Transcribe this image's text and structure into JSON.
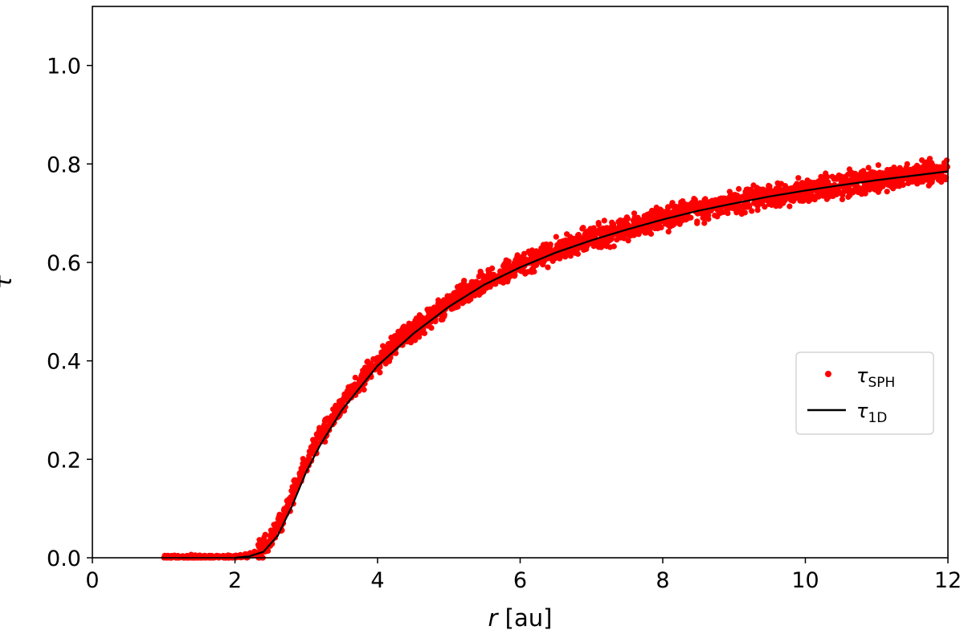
{
  "chart_data": {
    "type": "scatter",
    "title": "",
    "xlabel_var": "r",
    "xlabel_unit": " [au]",
    "ylabel": "τ",
    "xlim": [
      0,
      12
    ],
    "ylim": [
      0,
      1.12
    ],
    "x_ticks": [
      0,
      2,
      4,
      6,
      8,
      10,
      12
    ],
    "x_tick_labels": [
      "0",
      "2",
      "4",
      "6",
      "8",
      "10",
      "12"
    ],
    "y_ticks": [
      0,
      0.2,
      0.4,
      0.6,
      0.8,
      1.0
    ],
    "y_tick_labels": [
      "0.0",
      "0.2",
      "0.4",
      "0.6",
      "0.8",
      "1.0"
    ],
    "grid": false,
    "legend_placement": "right",
    "series": [
      {
        "name": "τ",
        "name_sub": "SPH",
        "kind": "scatter",
        "color": "#ff0000",
        "x_range": [
          1.0,
          12.0
        ],
        "scatter_width": 0.02
      },
      {
        "name": "τ",
        "name_sub": "1D",
        "kind": "line",
        "color": "#000000",
        "x": [
          2.0,
          2.2,
          2.4,
          2.6,
          2.8,
          3.0,
          3.2,
          3.5,
          4.0,
          4.5,
          5.0,
          5.5,
          6.0,
          6.5,
          7.0,
          7.5,
          8.0,
          8.5,
          9.0,
          9.5,
          10.0,
          10.5,
          11.0,
          11.5,
          12.0
        ],
        "y": [
          0.0,
          0.003,
          0.012,
          0.045,
          0.105,
          0.175,
          0.23,
          0.3,
          0.39,
          0.455,
          0.51,
          0.555,
          0.59,
          0.62,
          0.645,
          0.667,
          0.687,
          0.705,
          0.72,
          0.734,
          0.746,
          0.757,
          0.767,
          0.776,
          0.785
        ]
      }
    ]
  }
}
